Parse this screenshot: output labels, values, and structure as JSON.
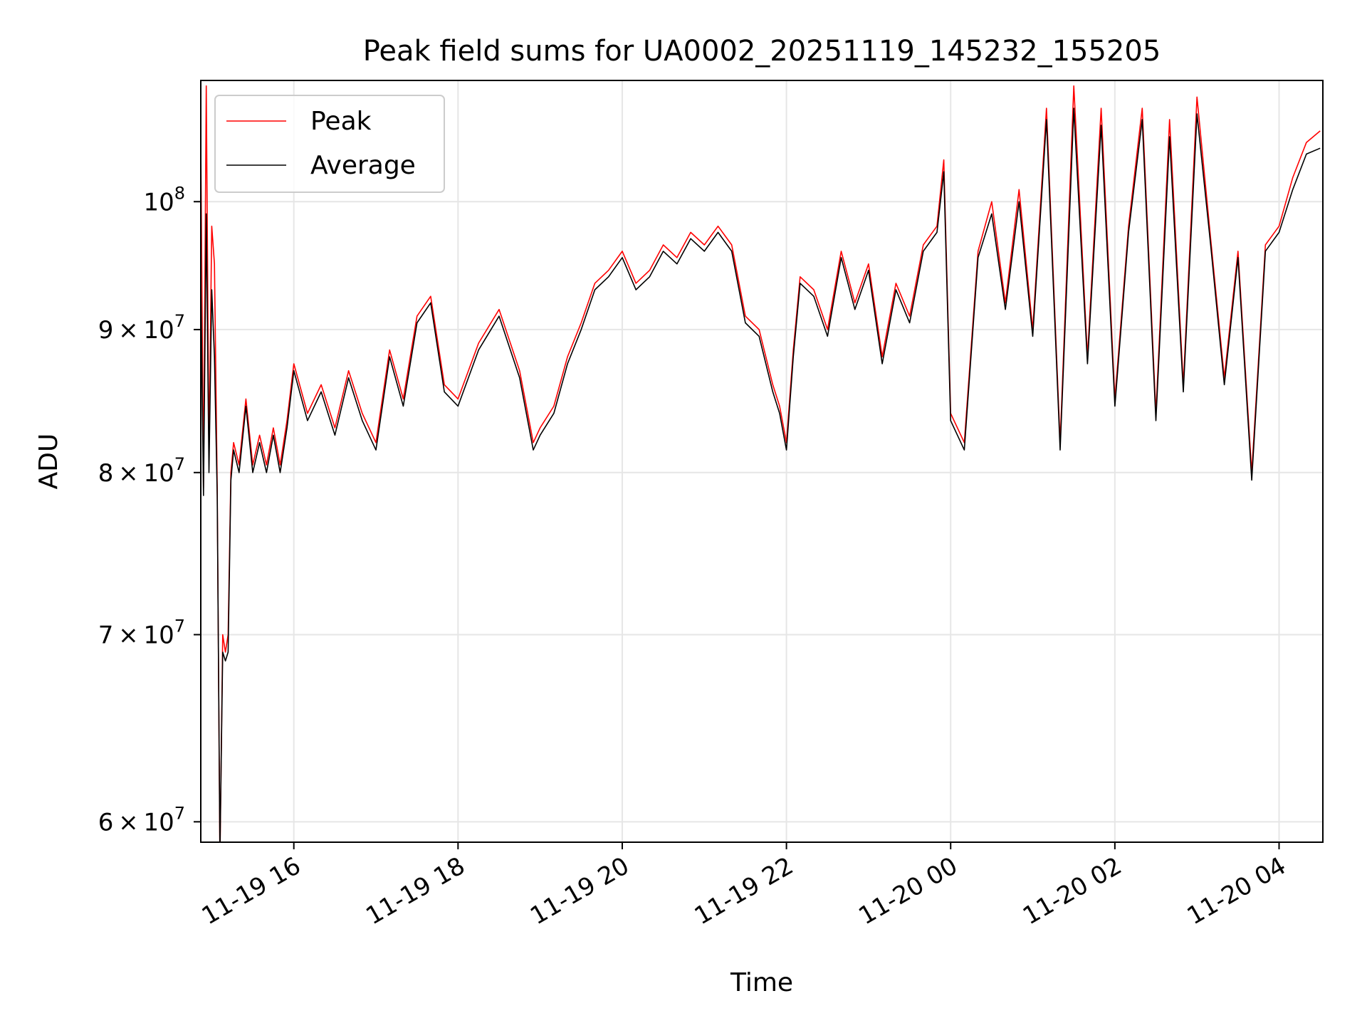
{
  "chart_data": {
    "type": "line",
    "title": "Peak field sums for UA0002_20251119_145232_155205",
    "xlabel": "Time",
    "ylabel": "ADU",
    "y_scale": "log",
    "ylim": [
      59000000,
      110500000
    ],
    "xlim": [
      "2025-11-19 14:52",
      "2025-11-20 04:32"
    ],
    "grid": true,
    "legend_position": "top-left",
    "x_ticks": [
      {
        "value": "2025-11-19 16:00",
        "label": "11-19 16"
      },
      {
        "value": "2025-11-19 18:00",
        "label": "11-19 18"
      },
      {
        "value": "2025-11-19 20:00",
        "label": "11-19 20"
      },
      {
        "value": "2025-11-19 22:00",
        "label": "11-19 22"
      },
      {
        "value": "2025-11-20 00:00",
        "label": "11-20 00"
      },
      {
        "value": "2025-11-20 02:00",
        "label": "11-20 02"
      },
      {
        "value": "2025-11-20 04:00",
        "label": "11-20 04"
      }
    ],
    "y_ticks": [
      {
        "value": 60000000,
        "base": "6 × 10",
        "exp": "7"
      },
      {
        "value": 70000000,
        "base": "7 × 10",
        "exp": "7"
      },
      {
        "value": 80000000,
        "base": "8 × 10",
        "exp": "7"
      },
      {
        "value": 90000000,
        "base": "9 × 10",
        "exp": "7"
      },
      {
        "value": 100000000,
        "base": "10",
        "exp": "8"
      }
    ],
    "x": [
      "2025-11-19 14:52",
      "2025-11-19 14:54",
      "2025-11-19 14:56",
      "2025-11-19 14:58",
      "2025-11-19 15:00",
      "2025-11-19 15:02",
      "2025-11-19 15:04",
      "2025-11-19 15:06",
      "2025-11-19 15:08",
      "2025-11-19 15:10",
      "2025-11-19 15:12",
      "2025-11-19 15:14",
      "2025-11-19 15:16",
      "2025-11-19 15:20",
      "2025-11-19 15:25",
      "2025-11-19 15:30",
      "2025-11-19 15:35",
      "2025-11-19 15:40",
      "2025-11-19 15:45",
      "2025-11-19 15:50",
      "2025-11-19 15:55",
      "2025-11-19 16:00",
      "2025-11-19 16:10",
      "2025-11-19 16:20",
      "2025-11-19 16:30",
      "2025-11-19 16:40",
      "2025-11-19 16:50",
      "2025-11-19 17:00",
      "2025-11-19 17:10",
      "2025-11-19 17:20",
      "2025-11-19 17:30",
      "2025-11-19 17:40",
      "2025-11-19 17:50",
      "2025-11-19 18:00",
      "2025-11-19 18:15",
      "2025-11-19 18:30",
      "2025-11-19 18:45",
      "2025-11-19 18:55",
      "2025-11-19 19:00",
      "2025-11-19 19:10",
      "2025-11-19 19:20",
      "2025-11-19 19:30",
      "2025-11-19 19:40",
      "2025-11-19 19:50",
      "2025-11-19 20:00",
      "2025-11-19 20:10",
      "2025-11-19 20:20",
      "2025-11-19 20:30",
      "2025-11-19 20:40",
      "2025-11-19 20:50",
      "2025-11-19 21:00",
      "2025-11-19 21:10",
      "2025-11-19 21:20",
      "2025-11-19 21:30",
      "2025-11-19 21:40",
      "2025-11-19 21:50",
      "2025-11-19 21:55",
      "2025-11-19 22:00",
      "2025-11-19 22:05",
      "2025-11-19 22:10",
      "2025-11-19 22:20",
      "2025-11-19 22:30",
      "2025-11-19 22:40",
      "2025-11-19 22:50",
      "2025-11-19 23:00",
      "2025-11-19 23:10",
      "2025-11-19 23:20",
      "2025-11-19 23:30",
      "2025-11-19 23:40",
      "2025-11-19 23:50",
      "2025-11-19 23:55",
      "2025-11-20 00:00",
      "2025-11-20 00:10",
      "2025-11-20 00:20",
      "2025-11-20 00:30",
      "2025-11-20 00:40",
      "2025-11-20 00:50",
      "2025-11-20 01:00",
      "2025-11-20 01:10",
      "2025-11-20 01:20",
      "2025-11-20 01:30",
      "2025-11-20 01:40",
      "2025-11-20 01:50",
      "2025-11-20 02:00",
      "2025-11-20 02:10",
      "2025-11-20 02:20",
      "2025-11-20 02:30",
      "2025-11-20 02:40",
      "2025-11-20 02:50",
      "2025-11-20 03:00",
      "2025-11-20 03:10",
      "2025-11-20 03:20",
      "2025-11-20 03:30",
      "2025-11-20 03:40",
      "2025-11-20 03:50",
      "2025-11-20 04:00",
      "2025-11-20 04:10",
      "2025-11-20 04:20",
      "2025-11-20 04:30"
    ],
    "series": [
      {
        "name": "Peak",
        "color": "#ff0000",
        "values": [
          105000000,
          79000000,
          110000000,
          81000000,
          98000000,
          95000000,
          79000000,
          58000000,
          70000000,
          69000000,
          70000000,
          80000000,
          82000000,
          80500000,
          85000000,
          80500000,
          82500000,
          80500000,
          83000000,
          80500000,
          83500000,
          87500000,
          84000000,
          86000000,
          83000000,
          87000000,
          84000000,
          82000000,
          88500000,
          85000000,
          91000000,
          92500000,
          86000000,
          85000000,
          89000000,
          91500000,
          87000000,
          82000000,
          83000000,
          84500000,
          88000000,
          90500000,
          93500000,
          94500000,
          96000000,
          93500000,
          94500000,
          96500000,
          95500000,
          97500000,
          96500000,
          98000000,
          96500000,
          91000000,
          90000000,
          86000000,
          84500000,
          82000000,
          88500000,
          94000000,
          93000000,
          90000000,
          96000000,
          92000000,
          95000000,
          88000000,
          93500000,
          91000000,
          96500000,
          98000000,
          103500000,
          84000000,
          82000000,
          96000000,
          100000000,
          92000000,
          101000000,
          90000000,
          108000000,
          82000000,
          110000000,
          88000000,
          108000000,
          85000000,
          98000000,
          108000000,
          84000000,
          107000000,
          86000000,
          109000000,
          97000000,
          86500000,
          96000000,
          80000000,
          96500000,
          98000000,
          102000000,
          105000000,
          106000000
        ]
      },
      {
        "name": "Average",
        "color": "#000000",
        "values": [
          94000000,
          78500000,
          99000000,
          80000000,
          93000000,
          88000000,
          78500000,
          58500000,
          69000000,
          68500000,
          69000000,
          79500000,
          81500000,
          80000000,
          84500000,
          80000000,
          82000000,
          80000000,
          82500000,
          80000000,
          83000000,
          87000000,
          83500000,
          85500000,
          82500000,
          86500000,
          83500000,
          81500000,
          88000000,
          84500000,
          90500000,
          92000000,
          85500000,
          84500000,
          88500000,
          91000000,
          86500000,
          81500000,
          82500000,
          84000000,
          87500000,
          90000000,
          93000000,
          94000000,
          95500000,
          93000000,
          94000000,
          96000000,
          95000000,
          97000000,
          96000000,
          97500000,
          96000000,
          90500000,
          89500000,
          85500000,
          84000000,
          81500000,
          88000000,
          93500000,
          92500000,
          89500000,
          95500000,
          91500000,
          94500000,
          87500000,
          93000000,
          90500000,
          96000000,
          97500000,
          102500000,
          83500000,
          81500000,
          95500000,
          99000000,
          91500000,
          100000000,
          89500000,
          107000000,
          81500000,
          108000000,
          87500000,
          106500000,
          84500000,
          97500000,
          107000000,
          83500000,
          105500000,
          85500000,
          107500000,
          96500000,
          86000000,
          95500000,
          79500000,
          96000000,
          97500000,
          101000000,
          104000000,
          104500000
        ]
      }
    ]
  }
}
